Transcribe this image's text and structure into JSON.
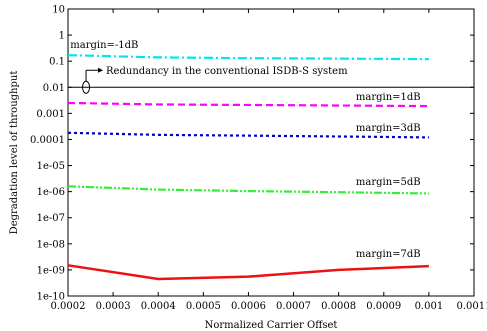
{
  "chart_data": {
    "type": "line",
    "title": "",
    "xlabel": "Normalized Carrier Offset",
    "ylabel": "Degradation level of throughput",
    "xlim": [
      0.0002,
      0.0011
    ],
    "ylim_log10": [
      -10,
      1
    ],
    "yscale": "log",
    "grid": false,
    "legend": "none",
    "x_ticks": [
      0.0002,
      0.0003,
      0.0004,
      0.0005,
      0.0006,
      0.0007,
      0.0008,
      0.0009,
      0.001,
      0.0011
    ],
    "x_tick_labels": [
      "0.0002",
      "0.0003",
      "0.0004",
      "0.0005",
      "0.0006",
      "0.0007",
      "0.0008",
      "0.0009",
      "0.001",
      "0.0011"
    ],
    "y_ticks_log10": [
      -10,
      -9,
      -8,
      -7,
      -6,
      -5,
      -4,
      -3,
      -2,
      -1,
      0,
      1
    ],
    "y_tick_labels": [
      "1e-10",
      "1e-09",
      "1e-08",
      "1e-07",
      "1e-06",
      "1e-05",
      "0.0001",
      "0.001",
      "0.01",
      "0.1",
      "1",
      "10"
    ],
    "series": [
      {
        "label": "margin=-1dB",
        "color": "#00e5ee",
        "dash": "dashdot",
        "x": [
          0.0002,
          0.0004,
          0.0006,
          0.0008,
          0.001
        ],
        "y": [
          0.17,
          0.14,
          0.13,
          0.125,
          0.12
        ]
      },
      {
        "label": "margin=1dB",
        "color": "#ff00ff",
        "dash": "dash",
        "x": [
          0.0002,
          0.0004,
          0.0006,
          0.0008,
          0.001
        ],
        "y": [
          0.0025,
          0.0022,
          0.0021,
          0.002,
          0.0019
        ]
      },
      {
        "label": "margin=3dB",
        "color": "#0000cc",
        "dash": "dot",
        "x": [
          0.0002,
          0.0004,
          0.0006,
          0.0008,
          0.001
        ],
        "y": [
          0.00018,
          0.00015,
          0.00014,
          0.00013,
          0.00012
        ]
      },
      {
        "label": "margin=5dB",
        "color": "#33ee33",
        "dash": "dashdotdot",
        "x": [
          0.0002,
          0.0004,
          0.0006,
          0.0008,
          0.001
        ],
        "y": [
          1.6e-06,
          1.2e-06,
          1.05e-06,
          9.5e-07,
          8.5e-07
        ]
      },
      {
        "label": "margin=7dB",
        "color": "#ee1111",
        "dash": "solid",
        "x": [
          0.0002,
          0.0004,
          0.0006,
          0.0008,
          0.001
        ],
        "y": [
          1.5e-09,
          4.5e-10,
          5.5e-10,
          1e-09,
          1.4e-09
        ]
      }
    ],
    "reference_line": {
      "y": 0.01,
      "color": "#000000",
      "label": "Redundancy in the conventional ISDB-S system"
    },
    "annotations": [
      {
        "text": "margin=-1dB",
        "series": 0
      },
      {
        "text": "margin=1dB",
        "series": 1
      },
      {
        "text": "margin=3dB",
        "series": 2
      },
      {
        "text": "margin=5dB",
        "series": 3
      },
      {
        "text": "margin=7dB",
        "series": 4
      }
    ]
  }
}
